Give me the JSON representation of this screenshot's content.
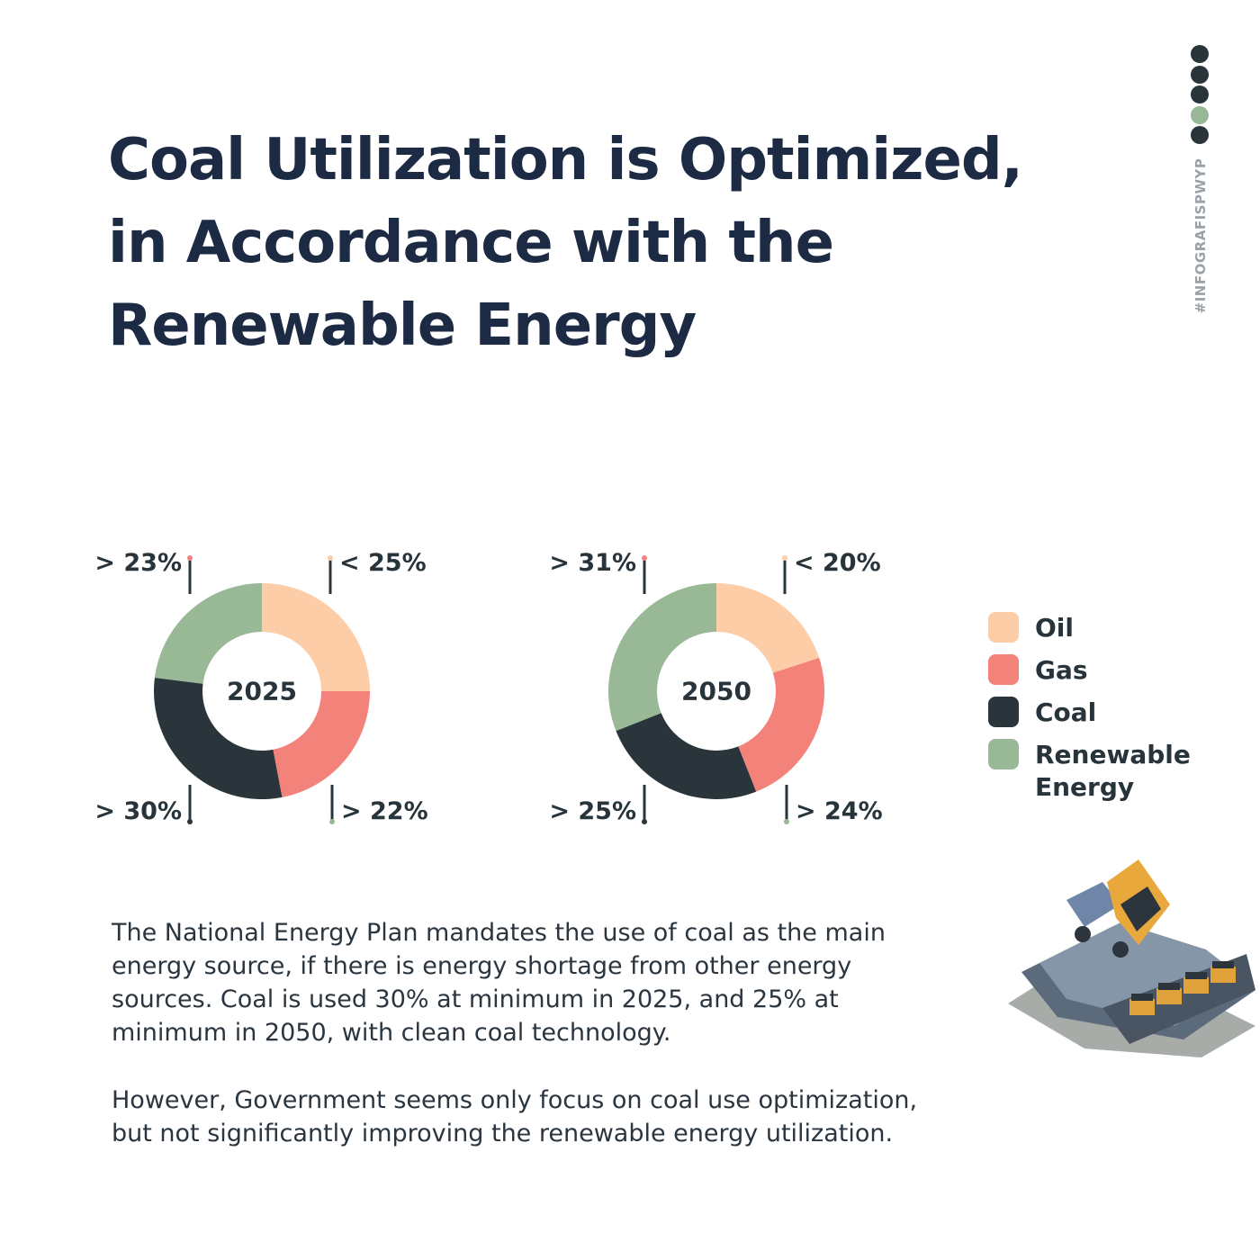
{
  "title": "Coal Utilization is Optimized, in Accordance with the Renewable Energy",
  "hashtag": "#INFOGRAFISPWYP",
  "colors": {
    "oil": "#fdcda8",
    "gas": "#f3827b",
    "coal": "#29353b",
    "renewable": "#98b896",
    "title": "#1d2a44"
  },
  "legend": [
    {
      "label": "Oil",
      "key": "oil"
    },
    {
      "label": "Gas",
      "key": "gas"
    },
    {
      "label": "Coal",
      "key": "coal"
    },
    {
      "label": "Renewable Energy",
      "key": "renewable"
    }
  ],
  "chart_data": [
    {
      "type": "pie",
      "title": "2025",
      "categories": [
        "Oil",
        "Gas",
        "Coal",
        "Renewable Energy"
      ],
      "values": [
        25,
        22,
        30,
        23
      ],
      "labels": [
        "< 25%",
        "> 22%",
        "> 30%",
        "> 23%"
      ]
    },
    {
      "type": "pie",
      "title": "2050",
      "categories": [
        "Oil",
        "Gas",
        "Coal",
        "Renewable Energy"
      ],
      "values": [
        20,
        24,
        25,
        31
      ],
      "labels": [
        "< 20%",
        "> 24%",
        "> 25%",
        "> 31%"
      ]
    }
  ],
  "body": [
    "The National Energy Plan mandates the use of coal as the main energy source, if there is energy shortage from other energy sources. Coal is used 30% at minimum in 2025, and 25% at minimum in 2050, with clean coal technology.",
    "However, Government seems only focus on coal use optimization, but not significantly improving the renewable energy utilization."
  ]
}
